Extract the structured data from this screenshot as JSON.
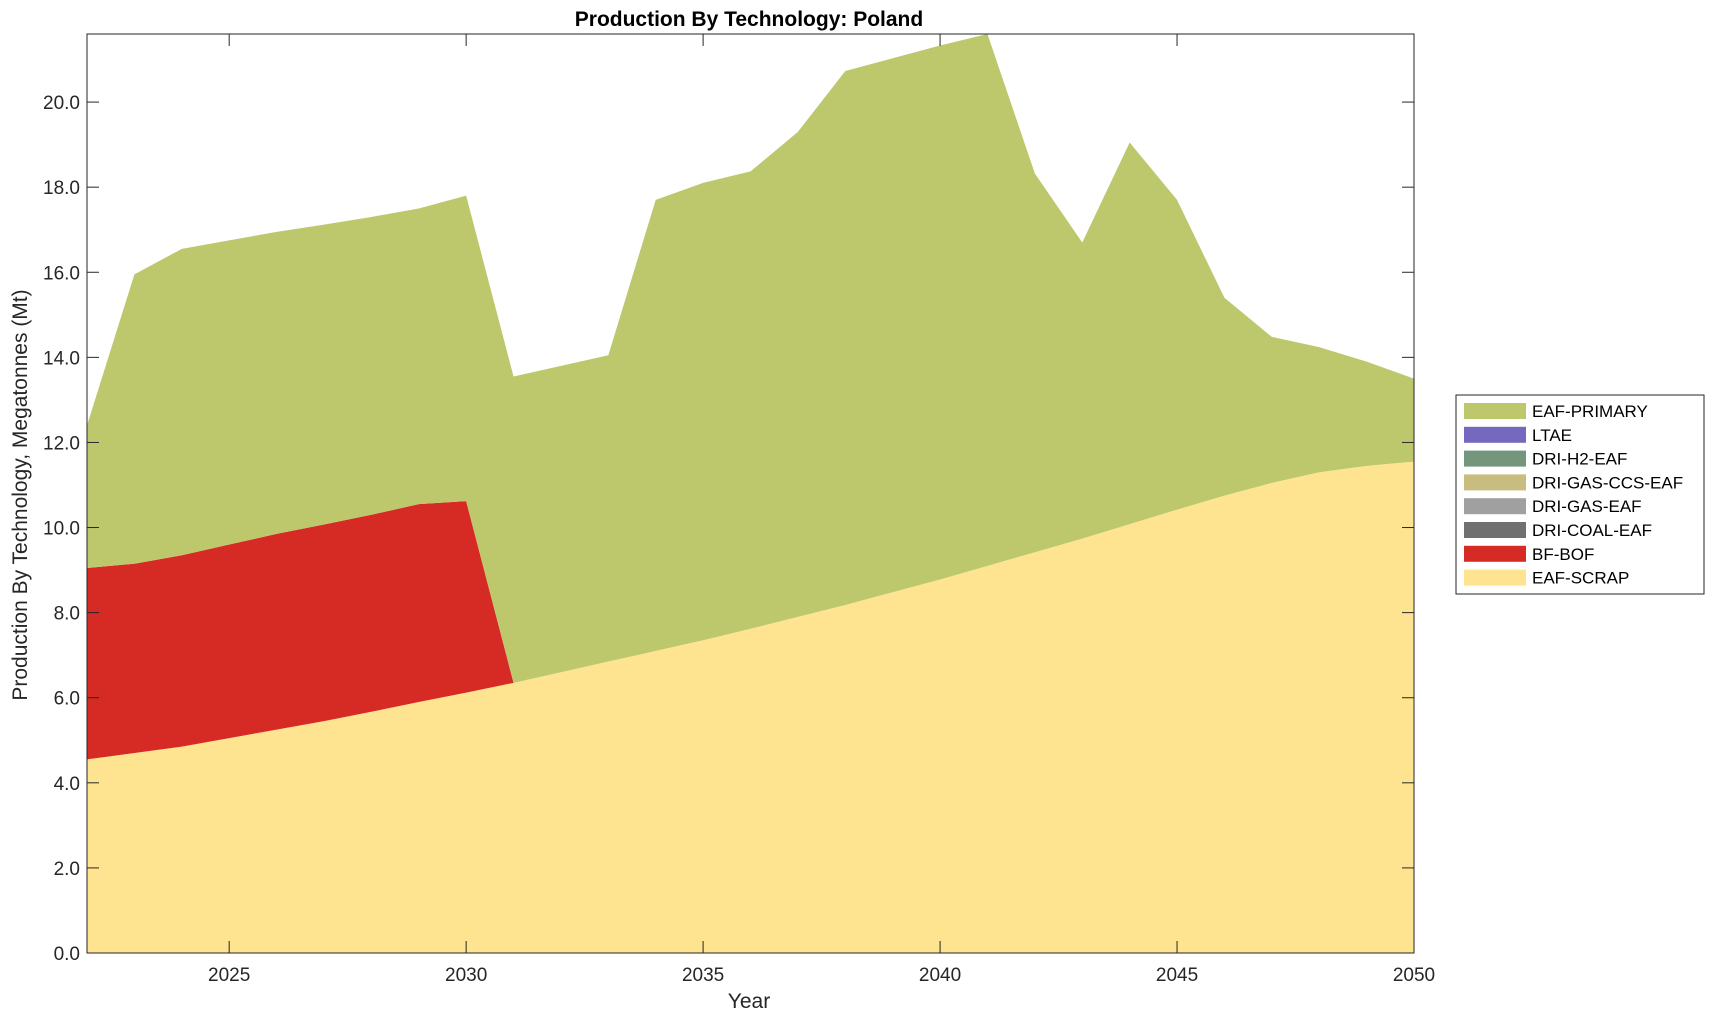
{
  "chart_data": {
    "type": "area",
    "stacked": true,
    "title": "Production By Technology: Poland",
    "xlabel": "Year",
    "ylabel": "Production By Technology, Megatonnes (Mt)",
    "xlim": [
      2022,
      2050
    ],
    "ylim": [
      0,
      21.6
    ],
    "grid": false,
    "legend_position": "right",
    "x_ticks": [
      2025,
      2030,
      2035,
      2040,
      2045,
      2050
    ],
    "x_tick_labels": [
      "2025",
      "2030",
      "2035",
      "2040",
      "2045",
      "2050"
    ],
    "y_ticks": [
      0,
      2,
      4,
      6,
      8,
      10,
      12,
      14,
      16,
      18,
      20
    ],
    "y_tick_labels": [
      "0.0",
      "2.0",
      "4.0",
      "6.0",
      "8.0",
      "10.0",
      "12.0",
      "14.0",
      "16.0",
      "18.0",
      "20.0"
    ],
    "x": [
      2022,
      2023,
      2024,
      2025,
      2026,
      2027,
      2028,
      2029,
      2030,
      2031,
      2032,
      2033,
      2034,
      2035,
      2036,
      2037,
      2038,
      2039,
      2040,
      2041,
      2042,
      2043,
      2044,
      2045,
      2046,
      2047,
      2048,
      2049,
      2050
    ],
    "series": [
      {
        "name": "EAF-SCRAP",
        "color": "#FEE391",
        "values": [
          4.55,
          4.7,
          4.85,
          5.05,
          5.25,
          5.45,
          5.67,
          5.9,
          6.12,
          6.35,
          6.6,
          6.85,
          7.1,
          7.35,
          7.62,
          7.9,
          8.18,
          8.48,
          8.78,
          9.1,
          9.42,
          9.74,
          10.08,
          10.42,
          10.75,
          11.05,
          11.3,
          11.45,
          11.55
        ]
      },
      {
        "name": "BF-BOF",
        "color": "#D62A24",
        "values": [
          4.5,
          4.45,
          4.5,
          4.55,
          4.6,
          4.62,
          4.63,
          4.65,
          4.5,
          0,
          0,
          0,
          0,
          0,
          0,
          0,
          0,
          0,
          0,
          0,
          0,
          0,
          0,
          0,
          0,
          0,
          0,
          0,
          0
        ]
      },
      {
        "name": "DRI-COAL-EAF",
        "color": "#707070",
        "values": [
          0,
          0,
          0,
          0,
          0,
          0,
          0,
          0,
          0,
          0,
          0,
          0,
          0,
          0,
          0,
          0,
          0,
          0,
          0,
          0,
          0,
          0,
          0,
          0,
          0,
          0,
          0,
          0,
          0
        ]
      },
      {
        "name": "DRI-GAS-EAF",
        "color": "#A0A0A0",
        "values": [
          0,
          0,
          0,
          0,
          0,
          0,
          0,
          0,
          0,
          0,
          0,
          0,
          0,
          0,
          0,
          0,
          0,
          0,
          0,
          0,
          0,
          0,
          0,
          0,
          0,
          0,
          0,
          0,
          0
        ]
      },
      {
        "name": "DRI-GAS-CCS-EAF",
        "color": "#C8BC7E",
        "values": [
          0,
          0,
          0,
          0,
          0,
          0,
          0,
          0,
          0,
          0,
          0,
          0,
          0,
          0,
          0,
          0,
          0,
          0,
          0,
          0,
          0,
          0,
          0,
          0,
          0,
          0,
          0,
          0,
          0
        ]
      },
      {
        "name": "DRI-H2-EAF",
        "color": "#73967C",
        "values": [
          0,
          0,
          0,
          0,
          0,
          0,
          0,
          0,
          0,
          0,
          0,
          0,
          0,
          0,
          0,
          0,
          0,
          0,
          0,
          0,
          0,
          0,
          0,
          0,
          0,
          0,
          0,
          0,
          0
        ]
      },
      {
        "name": "LTAE",
        "color": "#7469BE",
        "values": [
          0,
          0,
          0,
          0,
          0,
          0,
          0,
          0,
          0,
          0,
          0,
          0,
          0,
          0,
          0,
          0,
          0,
          0,
          0,
          0,
          0,
          0,
          0,
          0,
          0,
          0,
          0,
          0,
          0
        ]
      },
      {
        "name": "EAF-PRIMARY",
        "color": "#BDC86C",
        "values": [
          3.35,
          6.8,
          7.2,
          7.15,
          7.1,
          7.05,
          7.0,
          6.95,
          7.18,
          7.2,
          7.2,
          7.2,
          10.6,
          10.75,
          10.75,
          11.4,
          12.55,
          12.55,
          12.55,
          12.5,
          8.9,
          6.96,
          8.97,
          7.28,
          4.65,
          3.43,
          2.94,
          2.45,
          1.95
        ]
      }
    ],
    "legend_order": [
      "EAF-PRIMARY",
      "LTAE",
      "DRI-H2-EAF",
      "DRI-GAS-CCS-EAF",
      "DRI-GAS-EAF",
      "DRI-COAL-EAF",
      "BF-BOF",
      "EAF-SCRAP"
    ]
  }
}
